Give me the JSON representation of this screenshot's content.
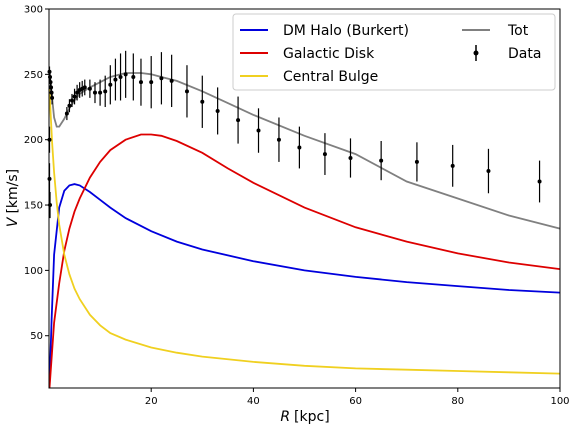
{
  "chart_data": {
    "type": "line",
    "xlabel_var": "R",
    "xlabel_unit": "[kpc]",
    "ylabel_var": "V",
    "ylabel_unit": "[km/s]",
    "xlim": [
      0,
      100
    ],
    "ylim": [
      10,
      300
    ],
    "xticks": [
      20,
      40,
      60,
      80,
      100
    ],
    "yticks": [
      50,
      100,
      150,
      200,
      250,
      300
    ],
    "grid": false,
    "legend_position": "top-right",
    "legend_columns": 2,
    "series": [
      {
        "name": "DM Halo (Burkert)",
        "color": "#0000dd",
        "x": [
          0.1,
          0.5,
          1,
          2,
          3,
          4,
          5,
          6,
          8,
          10,
          12,
          15,
          20,
          25,
          30,
          40,
          50,
          60,
          70,
          80,
          90,
          100
        ],
        "y": [
          12,
          62,
          112,
          148,
          161,
          165,
          166,
          165,
          160,
          154,
          148,
          140,
          130,
          122,
          116,
          107,
          100,
          95,
          91,
          88,
          85,
          83
        ]
      },
      {
        "name": "Galactic Disk",
        "color": "#dd0000",
        "x": [
          0.1,
          1,
          2,
          3,
          4,
          5,
          6,
          8,
          10,
          12,
          15,
          18,
          20,
          22,
          25,
          30,
          35,
          40,
          50,
          60,
          70,
          80,
          90,
          100
        ],
        "y": [
          10,
          60,
          90,
          115,
          132,
          145,
          155,
          171,
          183,
          192,
          200,
          204,
          204,
          203,
          199,
          190,
          178,
          167,
          148,
          133,
          122,
          113,
          106,
          101
        ]
      },
      {
        "name": "Central Bulge",
        "color": "#f0d020",
        "x": [
          0.1,
          0.3,
          0.6,
          1,
          1.5,
          2,
          3,
          4,
          5,
          6,
          8,
          10,
          12,
          15,
          20,
          25,
          30,
          40,
          50,
          60,
          70,
          80,
          90,
          100
        ],
        "y": [
          240,
          222,
          198,
          175,
          152,
          135,
          112,
          97,
          86,
          78,
          66,
          58,
          52,
          47,
          41,
          37,
          34,
          30,
          27,
          25,
          24,
          23,
          22,
          21
        ]
      },
      {
        "name": "Tot",
        "color": "#808080",
        "x": [
          0.1,
          0.3,
          0.6,
          1,
          1.5,
          2,
          3,
          4,
          5,
          6,
          8,
          10,
          12,
          15,
          18,
          20,
          22,
          25,
          30,
          35,
          40,
          50,
          60,
          70,
          80,
          90,
          100
        ],
        "y": [
          242,
          240,
          232,
          217,
          210,
          210,
          216,
          224,
          230,
          235,
          240,
          244,
          248,
          251,
          251,
          250,
          248,
          245,
          237,
          228,
          219,
          203,
          189,
          168,
          155,
          142,
          132
        ]
      }
    ],
    "data_points": {
      "name": "Data",
      "color": "#000000",
      "points": [
        {
          "x": 0.1,
          "y": 252,
          "err": 4
        },
        {
          "x": 0.2,
          "y": 248,
          "err": 4
        },
        {
          "x": 0.3,
          "y": 244,
          "err": 4
        },
        {
          "x": 0.4,
          "y": 240,
          "err": 5
        },
        {
          "x": 0.5,
          "y": 236,
          "err": 5
        },
        {
          "x": 0.6,
          "y": 232,
          "err": 5
        },
        {
          "x": 0.1,
          "y": 200,
          "err": 10
        },
        {
          "x": 0.1,
          "y": 170,
          "err": 12
        },
        {
          "x": 0.2,
          "y": 150,
          "err": 10
        },
        {
          "x": 3.5,
          "y": 220,
          "err": 5
        },
        {
          "x": 4,
          "y": 226,
          "err": 5
        },
        {
          "x": 4.5,
          "y": 230,
          "err": 5
        },
        {
          "x": 5,
          "y": 233,
          "err": 6
        },
        {
          "x": 5.5,
          "y": 236,
          "err": 6
        },
        {
          "x": 6,
          "y": 238,
          "err": 6
        },
        {
          "x": 6.5,
          "y": 239,
          "err": 6
        },
        {
          "x": 7,
          "y": 240,
          "err": 6
        },
        {
          "x": 8,
          "y": 239,
          "err": 7
        },
        {
          "x": 9,
          "y": 236,
          "err": 8
        },
        {
          "x": 10,
          "y": 236,
          "err": 10
        },
        {
          "x": 11,
          "y": 237,
          "err": 12
        },
        {
          "x": 12,
          "y": 242,
          "err": 15
        },
        {
          "x": 13,
          "y": 246,
          "err": 16
        },
        {
          "x": 14,
          "y": 248,
          "err": 18
        },
        {
          "x": 15,
          "y": 250,
          "err": 18
        },
        {
          "x": 16.5,
          "y": 248,
          "err": 18
        },
        {
          "x": 18,
          "y": 244,
          "err": 18
        },
        {
          "x": 20,
          "y": 244,
          "err": 20
        },
        {
          "x": 22,
          "y": 247,
          "err": 20
        },
        {
          "x": 24,
          "y": 245,
          "err": 20
        },
        {
          "x": 27,
          "y": 237,
          "err": 20
        },
        {
          "x": 30,
          "y": 229,
          "err": 20
        },
        {
          "x": 33,
          "y": 222,
          "err": 18
        },
        {
          "x": 37,
          "y": 215,
          "err": 18
        },
        {
          "x": 41,
          "y": 207,
          "err": 17
        },
        {
          "x": 45,
          "y": 200,
          "err": 17
        },
        {
          "x": 49,
          "y": 194,
          "err": 16
        },
        {
          "x": 54,
          "y": 189,
          "err": 16
        },
        {
          "x": 59,
          "y": 186,
          "err": 15
        },
        {
          "x": 65,
          "y": 184,
          "err": 15
        },
        {
          "x": 72,
          "y": 183,
          "err": 15
        },
        {
          "x": 79,
          "y": 180,
          "err": 16
        },
        {
          "x": 86,
          "y": 176,
          "err": 17
        },
        {
          "x": 96,
          "y": 168,
          "err": 16
        }
      ]
    }
  }
}
